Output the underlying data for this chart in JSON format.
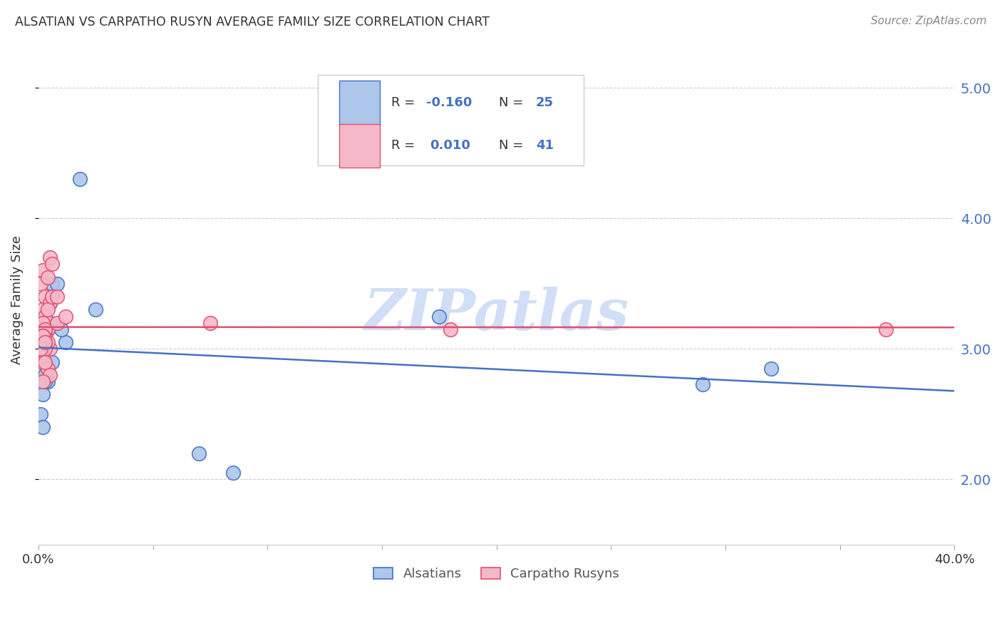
{
  "title": "ALSATIAN VS CARPATHO RUSYN AVERAGE FAMILY SIZE CORRELATION CHART",
  "source": "Source: ZipAtlas.com",
  "ylabel": "Average Family Size",
  "xlim": [
    0.0,
    0.4
  ],
  "ylim": [
    1.5,
    5.25
  ],
  "yticks": [
    2.0,
    3.0,
    4.0,
    5.0
  ],
  "xticks": [
    0.0,
    0.05,
    0.1,
    0.15,
    0.2,
    0.25,
    0.3,
    0.35,
    0.4
  ],
  "alsatian_color_face": "#adc6ea",
  "alsatian_color_edge": "#4472c4",
  "carpatho_color_face": "#f5b8c8",
  "carpatho_color_edge": "#e05070",
  "line_alsatian_color": "#4472c4",
  "line_carpatho_color": "#e05070",
  "tick_label_color": "#4472c4",
  "watermark_color": "#d0dff5",
  "background_color": "#ffffff",
  "grid_color": "#cccccc",
  "alsatian_x": [
    0.002,
    0.018,
    0.006,
    0.008,
    0.003,
    0.005,
    0.004,
    0.002,
    0.001,
    0.003,
    0.004,
    0.006,
    0.002,
    0.012,
    0.01,
    0.003,
    0.001,
    0.002,
    0.025,
    0.005,
    0.07,
    0.085,
    0.175,
    0.32,
    0.29
  ],
  "alsatian_y": [
    3.1,
    4.3,
    3.5,
    3.5,
    3.1,
    3.2,
    3.15,
    3.0,
    2.85,
    2.8,
    2.75,
    2.9,
    2.65,
    3.05,
    3.15,
    2.75,
    2.5,
    2.4,
    3.3,
    3.35,
    2.2,
    2.05,
    3.25,
    2.85,
    2.73
  ],
  "carpatho_x": [
    0.001,
    0.002,
    0.003,
    0.004,
    0.005,
    0.006,
    0.002,
    0.003,
    0.004,
    0.008,
    0.003,
    0.005,
    0.002,
    0.001,
    0.002,
    0.003,
    0.005,
    0.004,
    0.003,
    0.002,
    0.001,
    0.003,
    0.002,
    0.001,
    0.004,
    0.003,
    0.002,
    0.006,
    0.075,
    0.003,
    0.002,
    0.001,
    0.004,
    0.003,
    0.005,
    0.002,
    0.18,
    0.012,
    0.008,
    0.003,
    0.37
  ],
  "carpatho_y": [
    3.5,
    3.6,
    3.4,
    3.55,
    3.7,
    3.65,
    3.3,
    3.25,
    3.15,
    3.2,
    3.1,
    3.0,
    3.05,
    3.05,
    2.95,
    3.1,
    3.35,
    3.05,
    3.15,
    3.2,
    3.0,
    3.15,
    3.1,
    3.05,
    3.3,
    3.0,
    2.9,
    3.4,
    3.2,
    3.05,
    3.1,
    3.0,
    2.85,
    2.9,
    2.8,
    2.75,
    3.15,
    3.25,
    3.4,
    3.05,
    3.15
  ]
}
